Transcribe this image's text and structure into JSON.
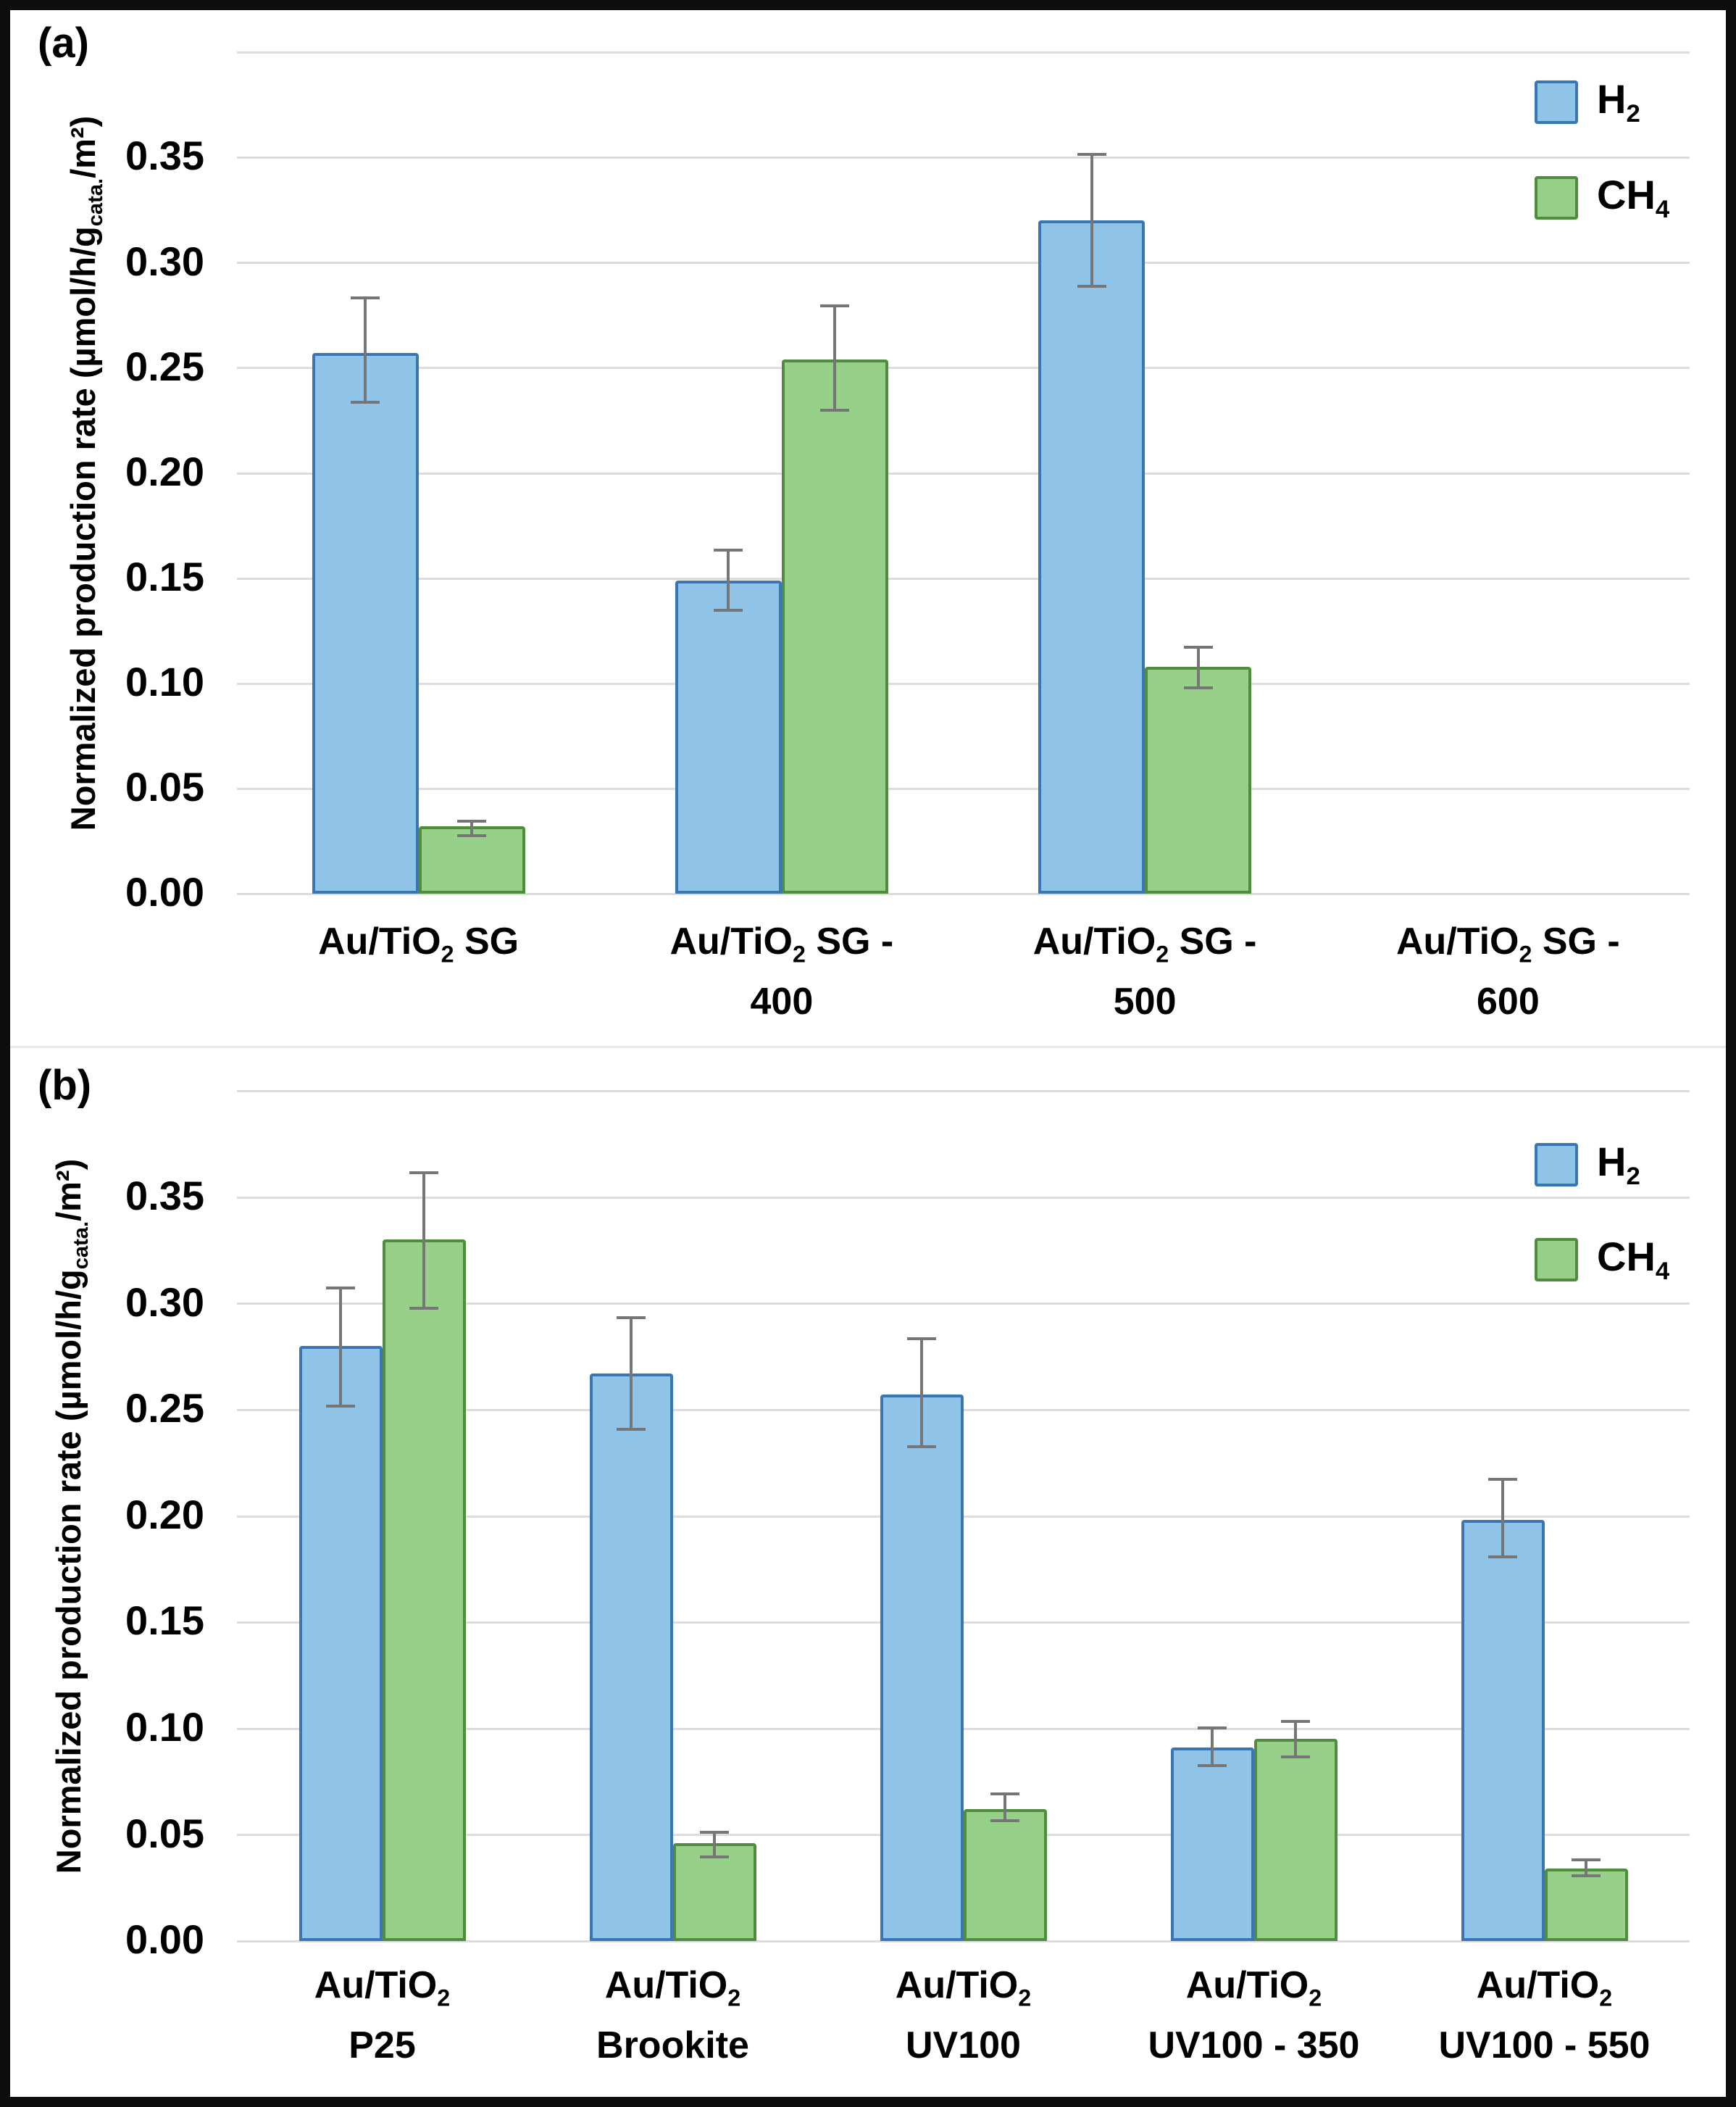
{
  "figure": {
    "panel_tags": [
      "(a)",
      "(b)"
    ],
    "colors": {
      "h2_fill": "#8FC4E8",
      "h2_border": "#3876B4",
      "ch4_fill": "#97D189",
      "ch4_border": "#4F8C3D",
      "error_bar": "#767676",
      "gridline": "#DCDCDC",
      "divider": "#E8E8E8",
      "frame": "#0d0d0d",
      "text": "#000000"
    }
  },
  "chart_data": [
    {
      "type": "bar",
      "panel_tag": "(a)",
      "title": "",
      "xlabel": "",
      "ylabel": "Normalized production rate (µmol/h/gcata./m²)",
      "ylabel_segments": [
        {
          "t": "Normalized production rate (µmol/h/g"
        },
        {
          "t": "cata.",
          "sub": true
        },
        {
          "t": "/m²)"
        }
      ],
      "ylim": [
        0,
        0.4
      ],
      "ytick_step": 0.05,
      "yticks": [
        "0.00",
        "0.05",
        "0.10",
        "0.15",
        "0.20",
        "0.25",
        "0.30",
        "0.35"
      ],
      "grid": true,
      "legend_position": "top-right",
      "legend": [
        {
          "name": "H2",
          "segments": [
            {
              "t": "H"
            },
            {
              "t": "2",
              "sub": true
            }
          ],
          "fill": "#8FC4E8",
          "border": "#3876B4"
        },
        {
          "name": "CH4",
          "segments": [
            {
              "t": "CH"
            },
            {
              "t": "4",
              "sub": true
            }
          ],
          "fill": "#97D189",
          "border": "#4F8C3D"
        }
      ],
      "categories": [
        {
          "name": "Au/TiO2 SG",
          "lines": [
            [
              {
                "t": "Au/TiO"
              },
              {
                "t": "2",
                "sub": true
              },
              {
                "t": " SG"
              }
            ]
          ]
        },
        {
          "name": "Au/TiO2 SG - 400",
          "lines": [
            [
              {
                "t": "Au/TiO"
              },
              {
                "t": "2",
                "sub": true
              },
              {
                "t": " SG -"
              }
            ],
            [
              {
                "t": "400"
              }
            ]
          ]
        },
        {
          "name": "Au/TiO2 SG - 500",
          "lines": [
            [
              {
                "t": "Au/TiO"
              },
              {
                "t": "2",
                "sub": true
              },
              {
                "t": " SG -"
              }
            ],
            [
              {
                "t": "500"
              }
            ]
          ]
        },
        {
          "name": "Au/TiO2 SG - 600",
          "lines": [
            [
              {
                "t": "Au/TiO"
              },
              {
                "t": "2",
                "sub": true
              },
              {
                "t": " SG -"
              }
            ],
            [
              {
                "t": "600"
              }
            ]
          ]
        }
      ],
      "series": [
        {
          "name": "H2",
          "fill": "#8FC4E8",
          "border": "#3876B4",
          "points": [
            {
              "v": 0.257,
              "lo": 0.233,
              "hi": 0.284
            },
            {
              "v": 0.149,
              "lo": 0.134,
              "hi": 0.164
            },
            {
              "v": 0.32,
              "lo": 0.288,
              "hi": 0.352
            },
            null
          ]
        },
        {
          "name": "CH4",
          "fill": "#97D189",
          "border": "#4F8C3D",
          "points": [
            {
              "v": 0.032,
              "lo": 0.027,
              "hi": 0.035
            },
            {
              "v": 0.254,
              "lo": 0.229,
              "hi": 0.28
            },
            {
              "v": 0.108,
              "lo": 0.097,
              "hi": 0.118
            },
            null
          ]
        }
      ]
    },
    {
      "type": "bar",
      "panel_tag": "(b)",
      "title": "",
      "xlabel": "",
      "ylabel": "Normalized production rate (µmol/h/gcata./m²)",
      "ylabel_segments": [
        {
          "t": "Normalized production rate (µmol/h/g"
        },
        {
          "t": "cata.",
          "sub": true
        },
        {
          "t": "/m²)"
        }
      ],
      "ylim": [
        0,
        0.4
      ],
      "ytick_step": 0.05,
      "yticks": [
        "0.00",
        "0.05",
        "0.10",
        "0.15",
        "0.20",
        "0.25",
        "0.30",
        "0.35"
      ],
      "grid": true,
      "legend_position": "top-right",
      "legend": [
        {
          "name": "H2",
          "segments": [
            {
              "t": "H"
            },
            {
              "t": "2",
              "sub": true
            }
          ],
          "fill": "#8FC4E8",
          "border": "#3876B4"
        },
        {
          "name": "CH4",
          "segments": [
            {
              "t": "CH"
            },
            {
              "t": "4",
              "sub": true
            }
          ],
          "fill": "#97D189",
          "border": "#4F8C3D"
        }
      ],
      "categories": [
        {
          "name": "Au/TiO2 P25",
          "lines": [
            [
              {
                "t": "Au/TiO"
              },
              {
                "t": "2",
                "sub": true
              }
            ],
            [
              {
                "t": "P25"
              }
            ]
          ]
        },
        {
          "name": "Au/TiO2 Brookite",
          "lines": [
            [
              {
                "t": "Au/TiO"
              },
              {
                "t": "2",
                "sub": true
              }
            ],
            [
              {
                "t": "Brookite"
              }
            ]
          ]
        },
        {
          "name": "Au/TiO2 UV100",
          "lines": [
            [
              {
                "t": "Au/TiO"
              },
              {
                "t": "2",
                "sub": true
              }
            ],
            [
              {
                "t": "UV100"
              }
            ]
          ]
        },
        {
          "name": "Au/TiO2 UV100 - 350",
          "lines": [
            [
              {
                "t": "Au/TiO"
              },
              {
                "t": "2",
                "sub": true
              }
            ],
            [
              {
                "t": "UV100 - 350"
              }
            ]
          ]
        },
        {
          "name": "Au/TiO2 UV100 - 550",
          "lines": [
            [
              {
                "t": "Au/TiO"
              },
              {
                "t": "2",
                "sub": true
              }
            ],
            [
              {
                "t": "UV100 - 550"
              }
            ]
          ]
        }
      ],
      "series": [
        {
          "name": "H2",
          "fill": "#8FC4E8",
          "border": "#3876B4",
          "points": [
            {
              "v": 0.28,
              "lo": 0.251,
              "hi": 0.308
            },
            {
              "v": 0.267,
              "lo": 0.24,
              "hi": 0.294
            },
            {
              "v": 0.257,
              "lo": 0.232,
              "hi": 0.284
            },
            {
              "v": 0.091,
              "lo": 0.082,
              "hi": 0.101
            },
            {
              "v": 0.198,
              "lo": 0.18,
              "hi": 0.218
            }
          ]
        },
        {
          "name": "CH4",
          "fill": "#97D189",
          "border": "#4F8C3D",
          "points": [
            {
              "v": 0.33,
              "lo": 0.297,
              "hi": 0.362
            },
            {
              "v": 0.046,
              "lo": 0.039,
              "hi": 0.052
            },
            {
              "v": 0.062,
              "lo": 0.056,
              "hi": 0.07
            },
            {
              "v": 0.095,
              "lo": 0.086,
              "hi": 0.104
            },
            {
              "v": 0.034,
              "lo": 0.03,
              "hi": 0.039
            }
          ]
        }
      ]
    }
  ]
}
